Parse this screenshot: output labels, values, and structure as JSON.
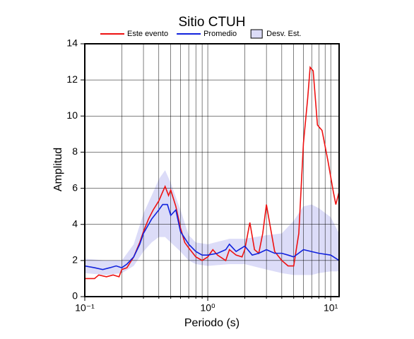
{
  "chart_data": {
    "type": "line",
    "title": "Sitio CTUH",
    "xlabel": "Periodo (s)",
    "ylabel": "Amplitud",
    "xscale": "log",
    "grid": true,
    "legend": "top",
    "xlim": [
      0.1,
      11.7
    ],
    "ylim": [
      0,
      14
    ],
    "xticks": [
      {
        "value": 0.1,
        "label": "10⁻¹"
      },
      {
        "value": 1,
        "label": "10⁰"
      },
      {
        "value": 10,
        "label": "10¹"
      }
    ],
    "xminorticks": [
      0.2,
      0.3,
      0.4,
      0.5,
      0.6,
      0.7,
      0.8,
      0.9,
      2,
      3,
      4,
      5,
      6,
      7,
      8,
      9
    ],
    "yticks": [
      0,
      2,
      4,
      6,
      8,
      10,
      12,
      14
    ],
    "band": {
      "name": "Desv. Est.",
      "color": "#dcdcf8",
      "x": [
        0.1,
        0.15,
        0.2,
        0.25,
        0.3,
        0.35,
        0.4,
        0.45,
        0.5,
        0.6,
        0.7,
        0.8,
        1,
        1.5,
        2,
        3,
        4,
        5,
        6,
        7,
        8,
        10,
        11.7
      ],
      "lower": [
        1.3,
        1.2,
        1.3,
        1.7,
        2.5,
        3.0,
        3.3,
        3.3,
        3.0,
        2.5,
        2.0,
        1.8,
        1.7,
        1.8,
        1.8,
        1.5,
        1.3,
        1.2,
        1.2,
        1.2,
        1.3,
        1.4,
        1.4
      ],
      "upper": [
        2.1,
        2.0,
        2.0,
        2.9,
        4.6,
        5.6,
        6.5,
        7.0,
        6.3,
        4.8,
        3.4,
        3.0,
        2.9,
        3.2,
        3.2,
        3.4,
        3.5,
        4.2,
        5.0,
        5.1,
        4.9,
        4.4,
        3.5
      ]
    },
    "series": [
      {
        "name": "Este evento",
        "color": "#ee1111",
        "x": [
          0.1,
          0.12,
          0.13,
          0.15,
          0.17,
          0.19,
          0.2,
          0.22,
          0.25,
          0.28,
          0.3,
          0.33,
          0.36,
          0.4,
          0.43,
          0.45,
          0.48,
          0.5,
          0.55,
          0.6,
          0.65,
          0.7,
          0.8,
          0.9,
          1.0,
          1.1,
          1.2,
          1.4,
          1.5,
          1.7,
          1.9,
          2.0,
          2.2,
          2.4,
          2.6,
          2.8,
          3.0,
          3.2,
          3.5,
          4.0,
          4.5,
          5.0,
          5.5,
          6.0,
          6.5,
          6.8,
          7.2,
          7.8,
          8.5,
          9.5,
          10.5,
          11.0,
          11.7
        ],
        "values": [
          1.0,
          1.0,
          1.2,
          1.1,
          1.2,
          1.1,
          1.5,
          1.6,
          2.2,
          3.0,
          3.6,
          4.3,
          4.8,
          5.3,
          5.8,
          6.1,
          5.6,
          5.9,
          5.0,
          3.8,
          3.0,
          2.7,
          2.2,
          2.0,
          2.2,
          2.6,
          2.3,
          2.0,
          2.6,
          2.3,
          2.2,
          2.6,
          4.1,
          2.6,
          2.4,
          3.5,
          5.1,
          4.0,
          2.5,
          2.0,
          1.7,
          1.7,
          3.5,
          8.5,
          11.0,
          12.7,
          12.5,
          9.5,
          9.2,
          7.5,
          5.8,
          5.1,
          5.8
        ]
      },
      {
        "name": "Promedio",
        "color": "#1122dd",
        "x": [
          0.1,
          0.12,
          0.14,
          0.16,
          0.18,
          0.2,
          0.22,
          0.25,
          0.28,
          0.3,
          0.35,
          0.4,
          0.43,
          0.47,
          0.5,
          0.55,
          0.6,
          0.7,
          0.8,
          0.9,
          1.0,
          1.2,
          1.4,
          1.5,
          1.7,
          2.0,
          2.3,
          2.6,
          3.0,
          3.5,
          4.0,
          4.5,
          5.0,
          6.0,
          8.0,
          10,
          11.7
        ],
        "values": [
          1.7,
          1.6,
          1.5,
          1.6,
          1.7,
          1.6,
          1.8,
          2.2,
          2.9,
          3.5,
          4.3,
          4.8,
          5.1,
          5.1,
          4.5,
          4.8,
          3.6,
          2.9,
          2.5,
          2.3,
          2.3,
          2.4,
          2.6,
          2.9,
          2.5,
          2.8,
          2.3,
          2.4,
          2.6,
          2.4,
          2.4,
          2.3,
          2.2,
          2.6,
          2.4,
          2.3,
          2.0
        ]
      }
    ]
  }
}
